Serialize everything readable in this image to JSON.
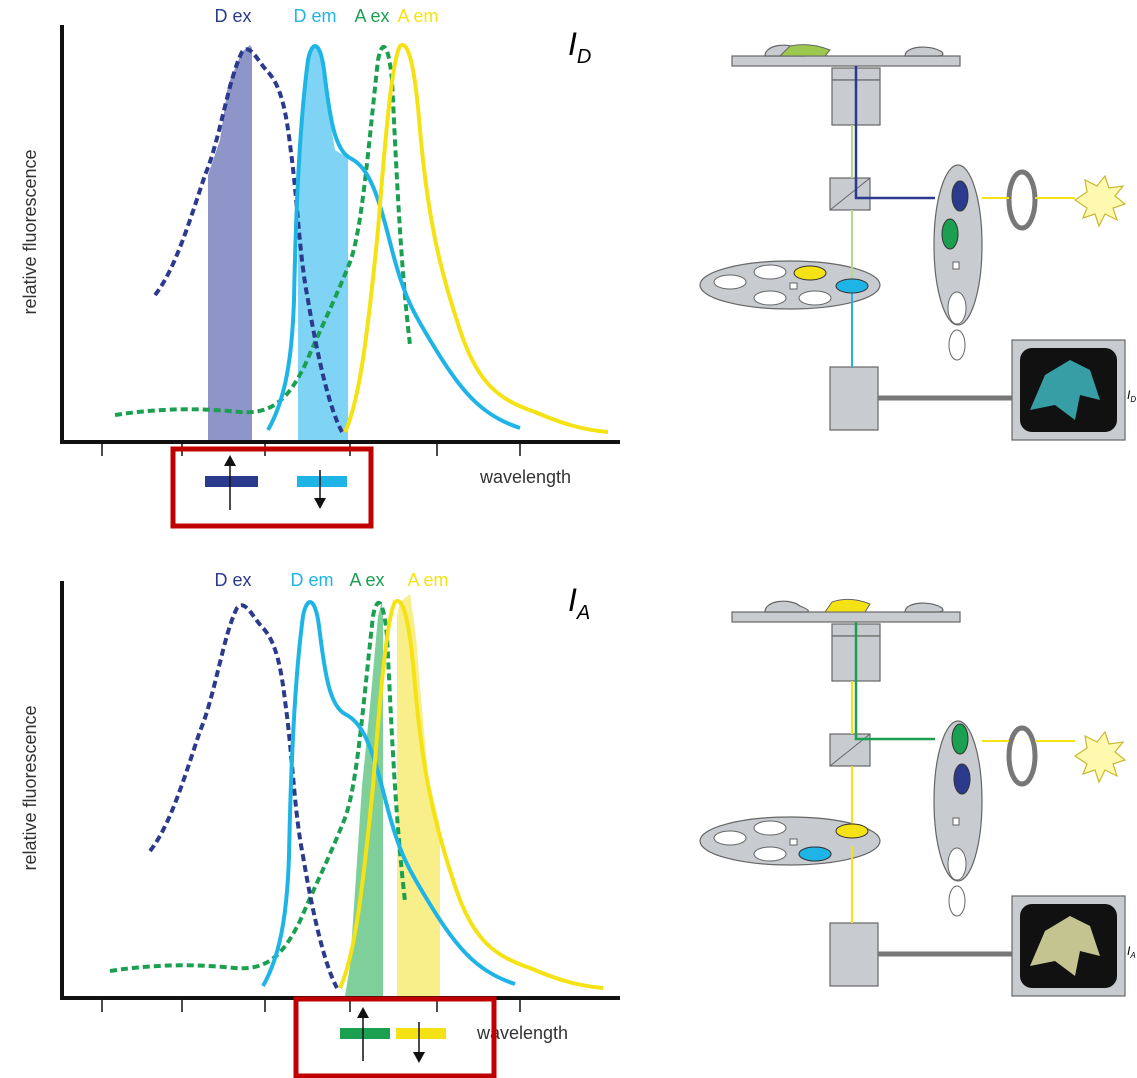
{
  "panels": [
    {
      "title": "I",
      "title_sub": "D",
      "labels": [
        "D ex",
        "D em",
        "A ex",
        "A em"
      ],
      "y_axis": "relative fluorescence",
      "x_axis": "wavelength",
      "image_label": "I",
      "image_label_sub": "D"
    },
    {
      "title": "I",
      "title_sub": "A",
      "labels": [
        "D ex",
        "D em",
        "A ex",
        "A em"
      ],
      "y_axis": "relative fluorescence",
      "x_axis": "wavelength",
      "image_label": "I",
      "image_label_sub": "A"
    }
  ]
}
